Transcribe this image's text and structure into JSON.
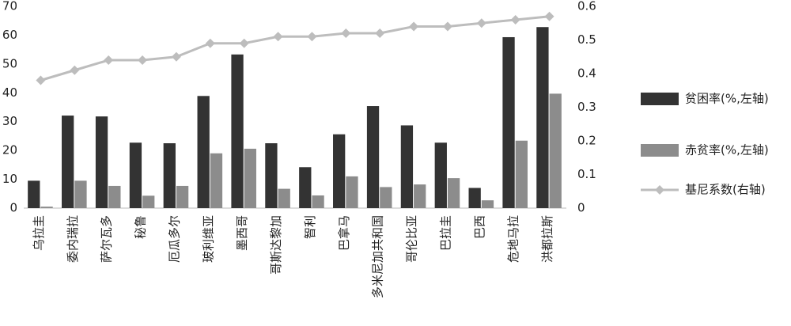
{
  "chart_data": {
    "type": "bar-line",
    "categories": [
      "乌拉圭",
      "委内瑞拉",
      "萨尔瓦多",
      "秘鲁",
      "厄瓜多尔",
      "玻利维亚",
      "墨西哥",
      "哥斯达黎加",
      "智利",
      "巴拿马",
      "多米尼加共和国",
      "哥伦比亚",
      "巴拉圭",
      "巴西",
      "危地马拉",
      "洪都拉斯"
    ],
    "series": [
      {
        "name": "贫困率(%,左轴)",
        "color": "#333333",
        "type": "bar",
        "values": [
          9.5,
          32.1,
          31.8,
          22.7,
          22.5,
          38.9,
          53.3,
          22.5,
          14.2,
          25.6,
          35.4,
          28.7,
          22.7,
          7,
          59.3,
          62.8
        ]
      },
      {
        "name": "赤贫率(%,左轴)",
        "color": "#8c8c8c",
        "type": "bar",
        "values": [
          0.5,
          9.5,
          7.7,
          4.3,
          7.7,
          19,
          20.6,
          6.7,
          4.4,
          11,
          7.3,
          8.2,
          10.4,
          2.7,
          23.4,
          39.7
        ]
      },
      {
        "name": "基尼系数(右轴)",
        "color": "#bdbdbd",
        "type": "line",
        "axis": "y2",
        "values": [
          0.38,
          0.41,
          0.44,
          0.44,
          0.45,
          0.49,
          0.49,
          0.51,
          0.51,
          0.52,
          0.52,
          0.54,
          0.54,
          0.55,
          0.56,
          0.57
        ]
      }
    ],
    "ylim": [
      0,
      70
    ],
    "yticks": [
      0,
      10,
      20,
      30,
      40,
      50,
      60,
      70
    ],
    "y2lim": [
      0,
      0.6
    ],
    "y2ticks": [
      0,
      0.1,
      0.2,
      0.3,
      0.4,
      0.5,
      0.6
    ],
    "legend": "right"
  }
}
